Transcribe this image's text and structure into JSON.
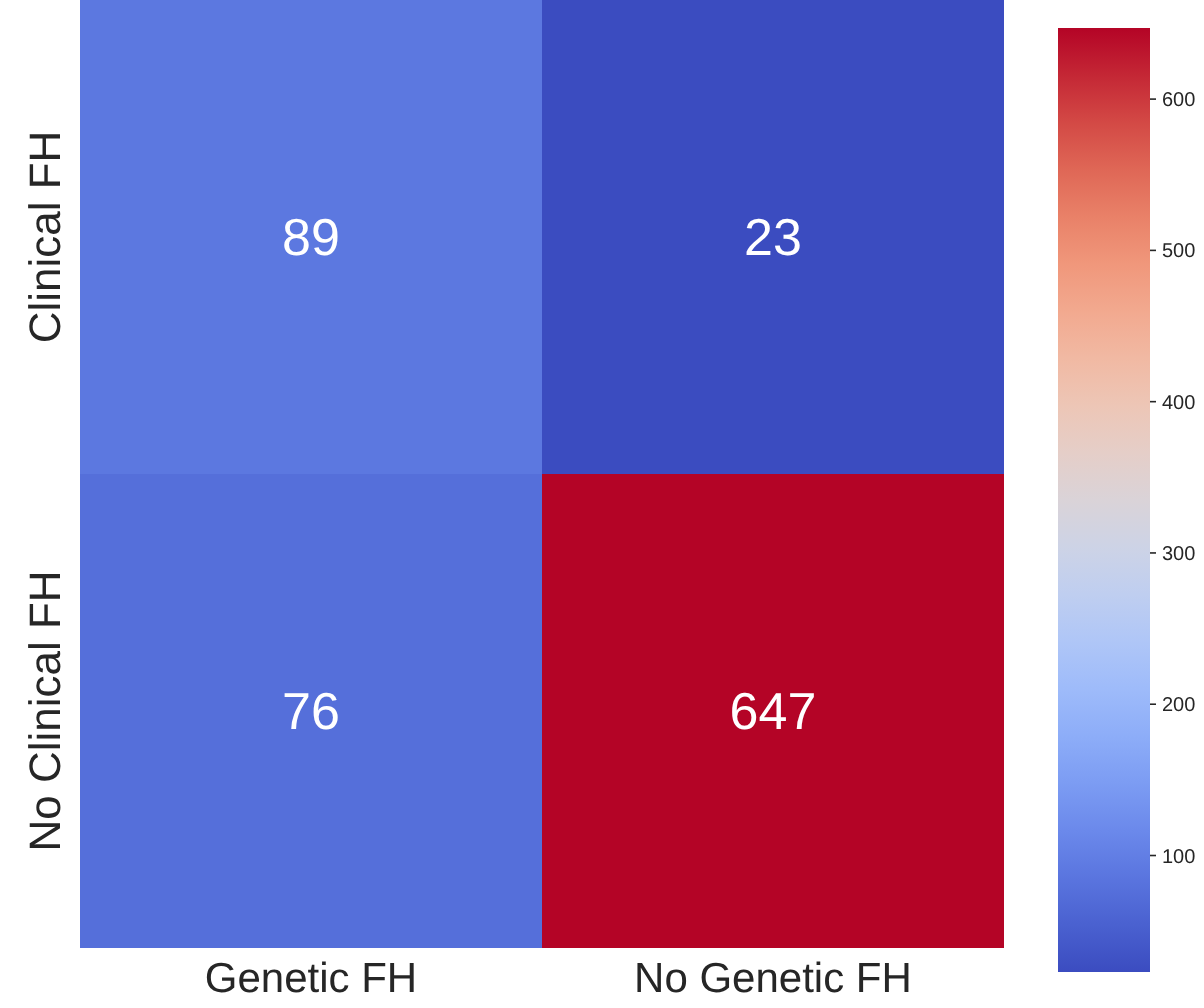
{
  "chart_data": {
    "type": "heatmap",
    "categories": [
      "Genetic FH",
      "No Genetic FH"
    ],
    "y_categories": [
      "Clinical FH",
      "No Clinical FH"
    ],
    "cells": [
      [
        89,
        23
      ],
      [
        76,
        647
      ]
    ],
    "data_labels": true,
    "clim": [
      23,
      647
    ],
    "cticks": [
      100,
      200,
      300,
      400,
      500,
      600
    ]
  }
}
